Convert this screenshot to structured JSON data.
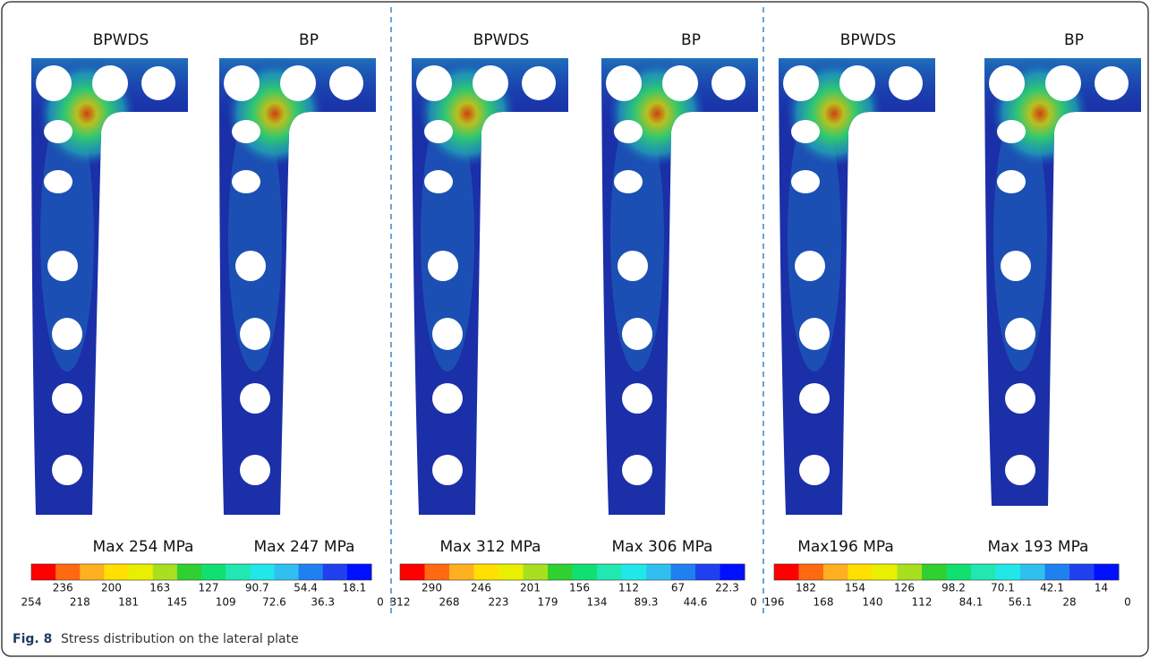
{
  "panels": [
    {
      "plates": [
        {
          "label": "BPWDS"
        },
        {
          "label": "BP"
        }
      ],
      "max_labels": [
        "Max 254 MPa",
        "Max 247 MPa"
      ],
      "scale_top": [
        "236",
        "200",
        "163",
        "127",
        "90.7",
        "54.4",
        "18.1"
      ],
      "scale_bottom": [
        "254",
        "218",
        "181",
        "145",
        "109",
        "72.6",
        "36.3",
        "0"
      ]
    },
    {
      "plates": [
        {
          "label": "BPWDS"
        },
        {
          "label": "BP"
        }
      ],
      "max_labels": [
        "Max 312 MPa",
        "Max 306 MPa"
      ],
      "scale_top": [
        "290",
        "246",
        "201",
        "156",
        "112",
        "67",
        "22.3"
      ],
      "scale_bottom": [
        "312",
        "268",
        "223",
        "179",
        "134",
        "89.3",
        "44.6",
        "0"
      ]
    },
    {
      "plates": [
        {
          "label": "BPWDS"
        },
        {
          "label": "BP"
        }
      ],
      "max_labels": [
        "Max196 MPa",
        "Max 193 MPa"
      ],
      "scale_top": [
        "182",
        "154",
        "126",
        "98.2",
        "70.1",
        "42.1",
        "14"
      ],
      "scale_bottom": [
        "196",
        "168",
        "140",
        "112",
        "84.1",
        "56.1",
        "28",
        "0"
      ]
    }
  ],
  "caption": {
    "label": "Fig. 8",
    "text": "Stress distribution on the lateral plate"
  }
}
